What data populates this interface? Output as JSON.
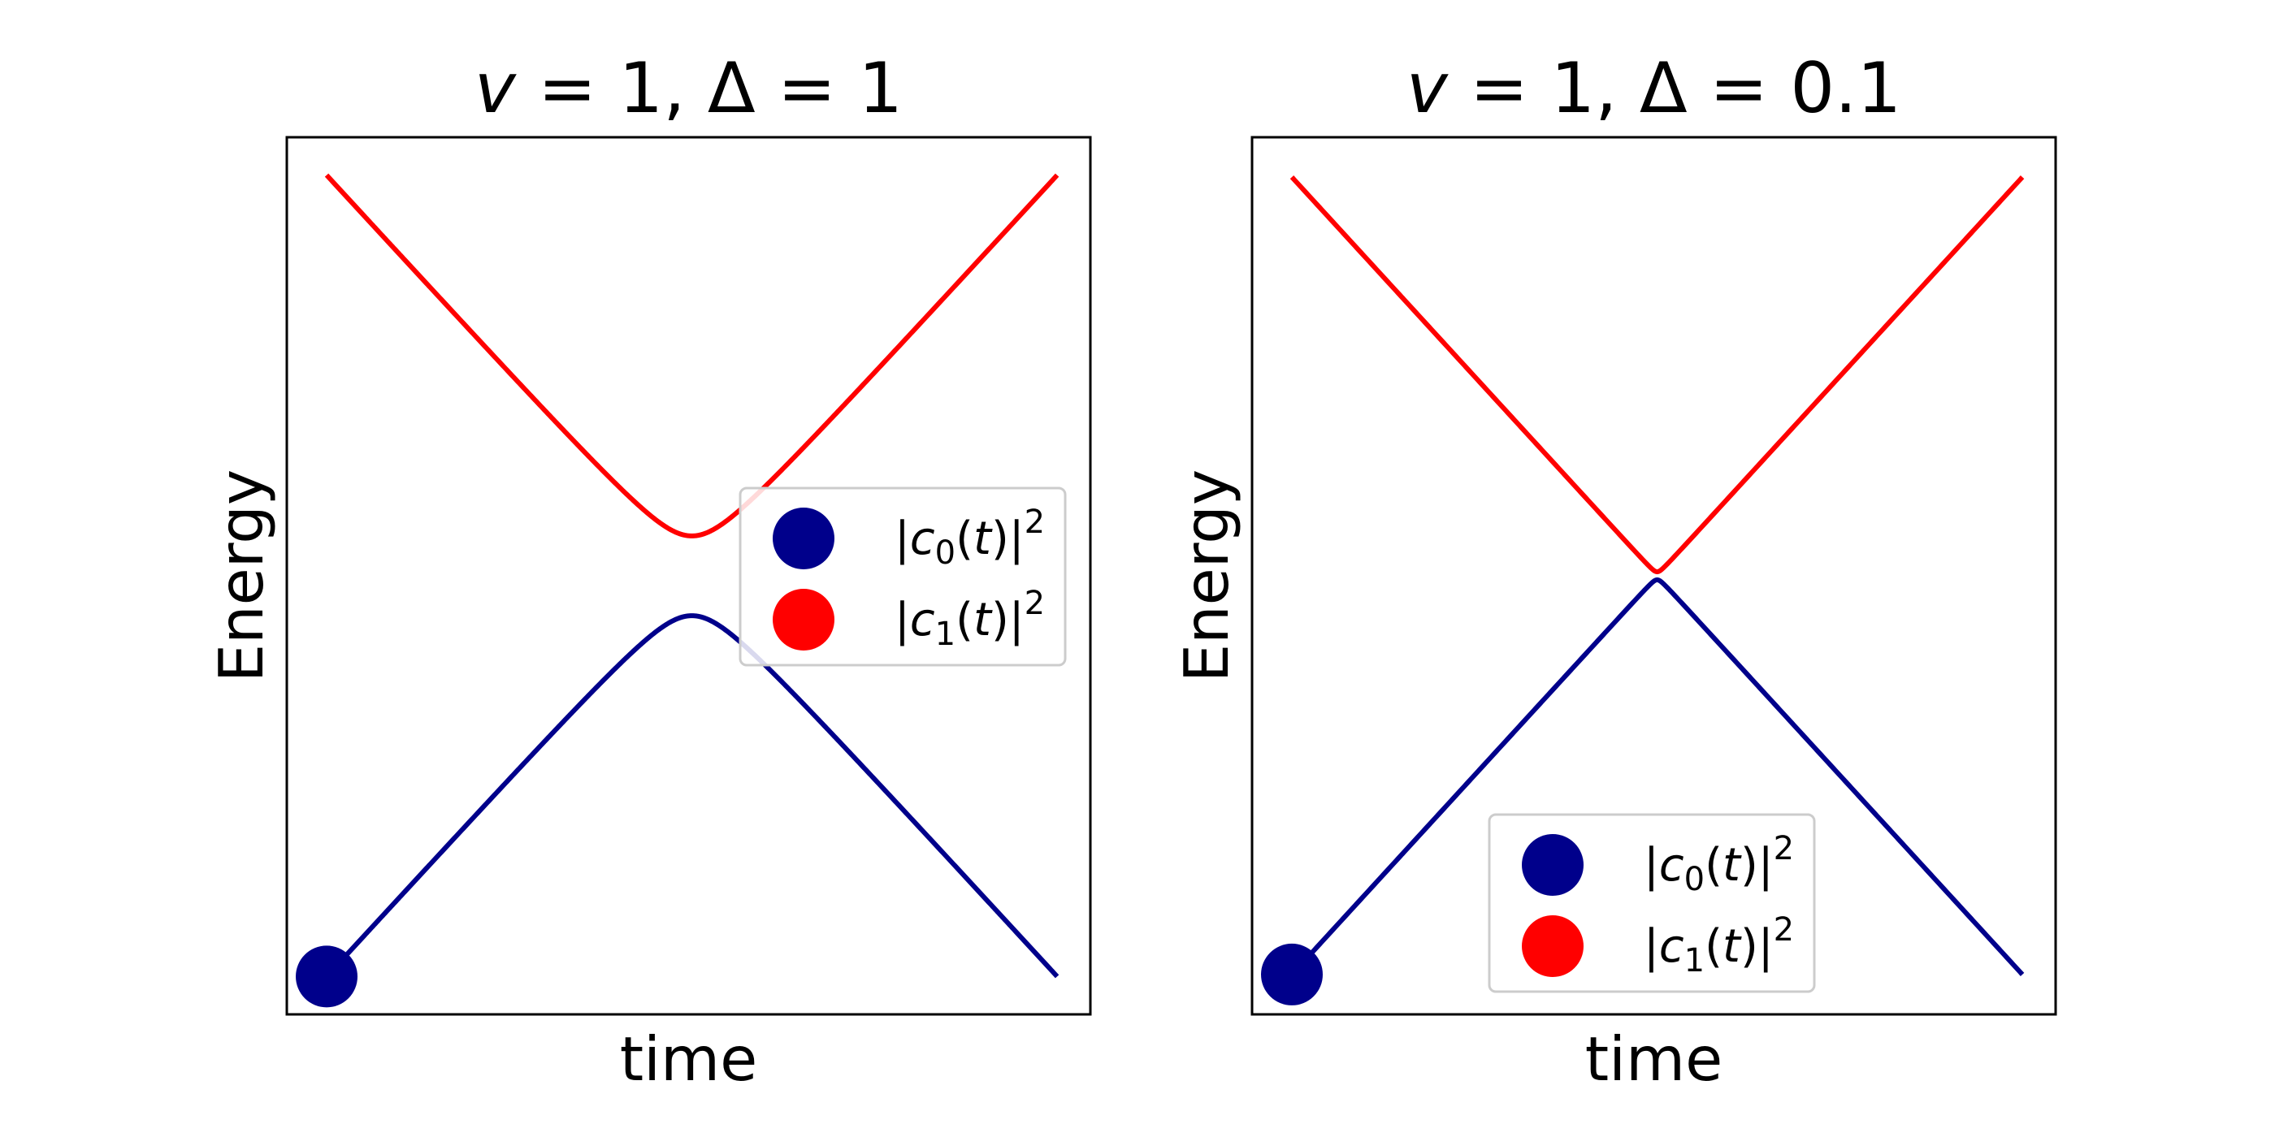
{
  "chart_data": [
    {
      "type": "line",
      "title": "v = 1, Δ = 1",
      "title_parts": {
        "v_symbol": "v",
        "v_rest": " = 1, Δ = 1"
      },
      "xlabel": "time",
      "ylabel": "Energy",
      "x_ticks_shown": false,
      "y_ticks_shown": false,
      "v": 1,
      "delta": 1,
      "t_range": [
        -10,
        10
      ],
      "ylim": [
        -11,
        11
      ],
      "legend_placement": "center right",
      "legend": [
        {
          "name": "|c0(t)|2",
          "color": "#00008b"
        },
        {
          "name": "|c1(t)|2",
          "color": "#ff0000"
        }
      ],
      "series": [
        {
          "curve": "lower",
          "color": "#00008b",
          "formula": "-sqrt((v*t)^2 + Δ^2)"
        },
        {
          "curve": "upper",
          "color": "#ff0000",
          "formula": "+sqrt((v*t)^2 + Δ^2)"
        }
      ],
      "marker": {
        "t": -10,
        "curve": "lower",
        "color": "#00008b"
      }
    },
    {
      "type": "line",
      "title": "v = 1, Δ = 0.1",
      "title_parts": {
        "v_symbol": "v",
        "v_rest": " = 1, Δ = 0.1"
      },
      "xlabel": "time",
      "ylabel": "Energy",
      "x_ticks_shown": false,
      "y_ticks_shown": false,
      "v": 1,
      "delta": 0.1,
      "t_range": [
        -10,
        10
      ],
      "ylim": [
        -11,
        11
      ],
      "legend_placement": "lower center",
      "legend": [
        {
          "name": "|c0(t)|2",
          "color": "#00008b"
        },
        {
          "name": "|c1(t)|2",
          "color": "#ff0000"
        }
      ],
      "series": [
        {
          "curve": "lower",
          "color": "#00008b",
          "formula": "-sqrt((v*t)^2 + Δ^2)"
        },
        {
          "curve": "upper",
          "color": "#ff0000",
          "formula": "+sqrt((v*t)^2 + Δ^2)"
        }
      ],
      "marker": {
        "t": -10,
        "curve": "lower",
        "color": "#00008b"
      }
    }
  ]
}
